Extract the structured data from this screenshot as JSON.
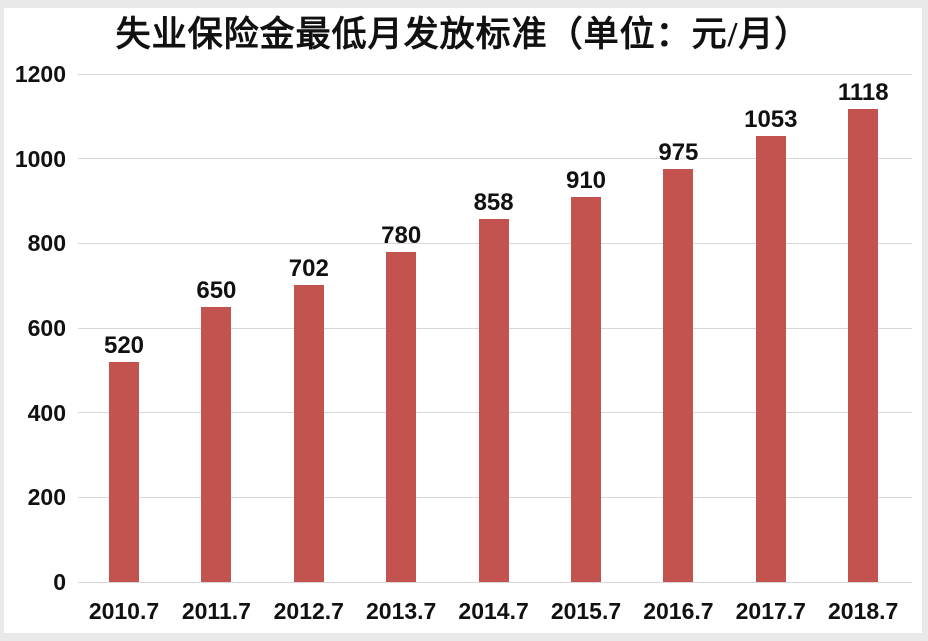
{
  "chart_data": {
    "type": "bar",
    "title": "失业保险金最低月发放标准（单位：元/月）",
    "categories": [
      "2010.7",
      "2011.7",
      "2012.7",
      "2013.7",
      "2014.7",
      "2015.7",
      "2016.7",
      "2017.7",
      "2018.7"
    ],
    "values": [
      520,
      650,
      702,
      780,
      858,
      910,
      975,
      1053,
      1118
    ],
    "data_labels": [
      "520",
      "650",
      "702",
      "780",
      "858",
      "910",
      "975",
      "1053",
      "1118"
    ],
    "xlabel": "",
    "ylabel": "",
    "ylim": [
      0,
      1200
    ],
    "ytick_interval": 200,
    "yticks": [
      0,
      200,
      400,
      600,
      800,
      1000,
      1200
    ],
    "ytick_labels": [
      "0",
      "200",
      "400",
      "600",
      "800",
      "1000",
      "1200"
    ],
    "grid": true,
    "legend": "none",
    "colors": {
      "bar": "#c2534e",
      "gridline": "#d8d8d8",
      "text": "#111111",
      "plot_background": "#ffffff",
      "frame_border": "#e9e9e9"
    }
  }
}
